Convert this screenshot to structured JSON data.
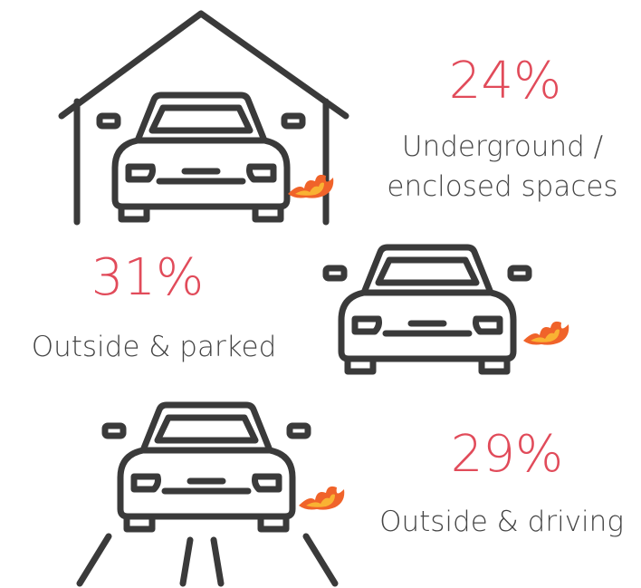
{
  "items": [
    {
      "value": "24%",
      "label": [
        "Underground /",
        "enclosed spaces"
      ]
    },
    {
      "value": "31%",
      "label": [
        "Outside & parked"
      ]
    },
    {
      "value": "29%",
      "label": [
        "Outside & driving"
      ]
    }
  ]
}
